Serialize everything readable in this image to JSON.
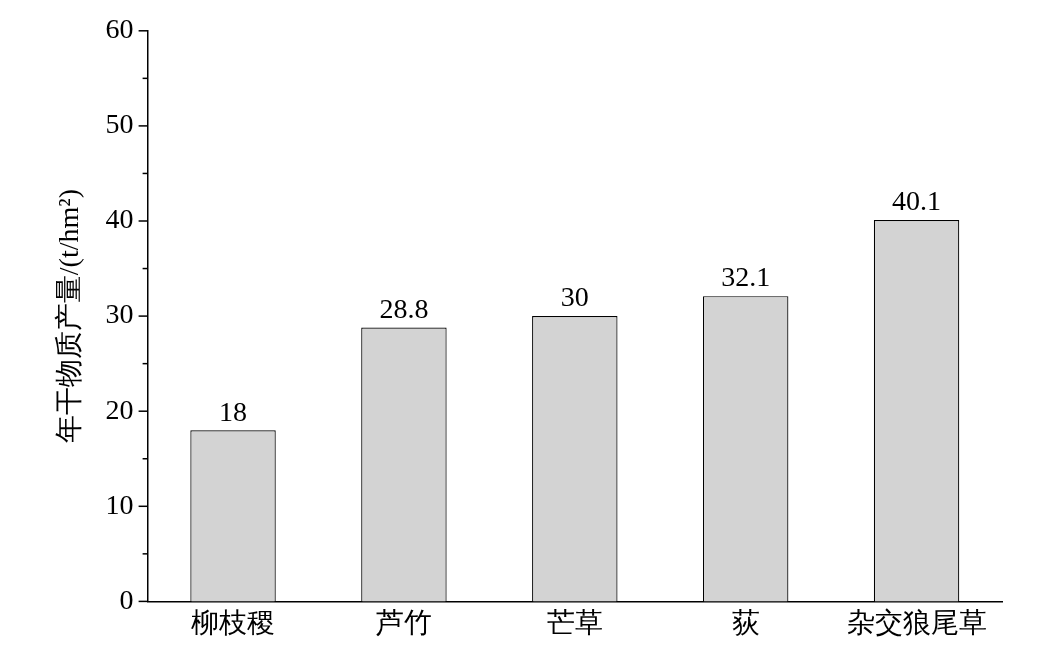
{
  "chart_data": {
    "type": "bar",
    "ylabel": "年干物质产量/(t/hm²)",
    "categories": [
      "柳枝稷",
      "芦竹",
      "芒草",
      "荻",
      "杂交狼尾草"
    ],
    "values": [
      18,
      28.8,
      30,
      32.1,
      40.1
    ],
    "color": "#d3d3d3",
    "ylim": [
      0,
      60
    ],
    "yticks": [
      0,
      {
        "value": 5,
        "label": null
      },
      10,
      {
        "value": 15,
        "label": null
      },
      20,
      {
        "value": 25,
        "label": null
      },
      30,
      {
        "value": 35,
        "label": null
      },
      40,
      {
        "value": 45,
        "label": null
      },
      50,
      {
        "value": 55,
        "label": null
      },
      60
    ],
    "data_labels": true,
    "grid": false,
    "legend": false
  }
}
